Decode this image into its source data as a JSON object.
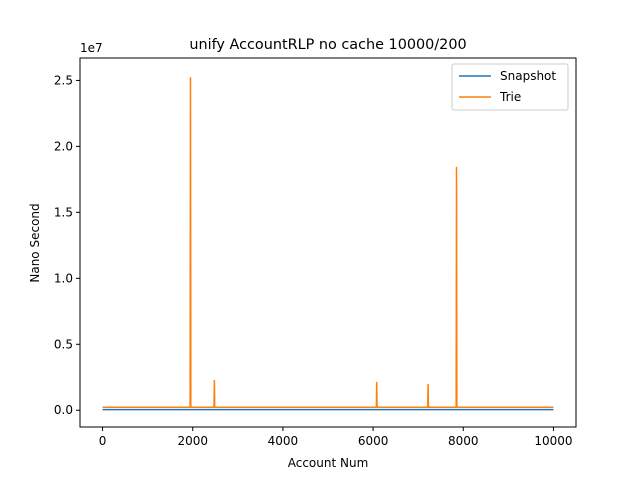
{
  "chart_data": {
    "type": "line",
    "title": "unify AccountRLP no cache 10000/200",
    "xlabel": "Account Num",
    "ylabel": "Nano Second",
    "y_offset_label": "1e7",
    "xlim": [
      -500,
      10500
    ],
    "ylim": [
      -1270000,
      26700000
    ],
    "x_ticks": [
      0,
      2000,
      4000,
      6000,
      8000,
      10000
    ],
    "x_tick_labels": [
      "0",
      "2000",
      "4000",
      "6000",
      "8000",
      "10000"
    ],
    "y_ticks": [
      0,
      5000000,
      10000000,
      15000000,
      20000000,
      25000000
    ],
    "y_tick_labels": [
      "0.0",
      "0.5",
      "1.0",
      "1.5",
      "2.0",
      "2.5"
    ],
    "grid": false,
    "legend_position": "top-right",
    "series": [
      {
        "name": "Snapshot",
        "color": "#1f77b4",
        "baseline": 50000,
        "x_range": [
          0,
          10000
        ],
        "spikes": []
      },
      {
        "name": "Trie",
        "color": "#ff7f0e",
        "baseline": 230000,
        "x_range": [
          0,
          10000
        ],
        "spikes": [
          {
            "x": 1950,
            "y": 25200000
          },
          {
            "x": 2480,
            "y": 2250000
          },
          {
            "x": 6080,
            "y": 2100000
          },
          {
            "x": 7220,
            "y": 1950000
          },
          {
            "x": 7850,
            "y": 18400000
          }
        ]
      }
    ]
  }
}
